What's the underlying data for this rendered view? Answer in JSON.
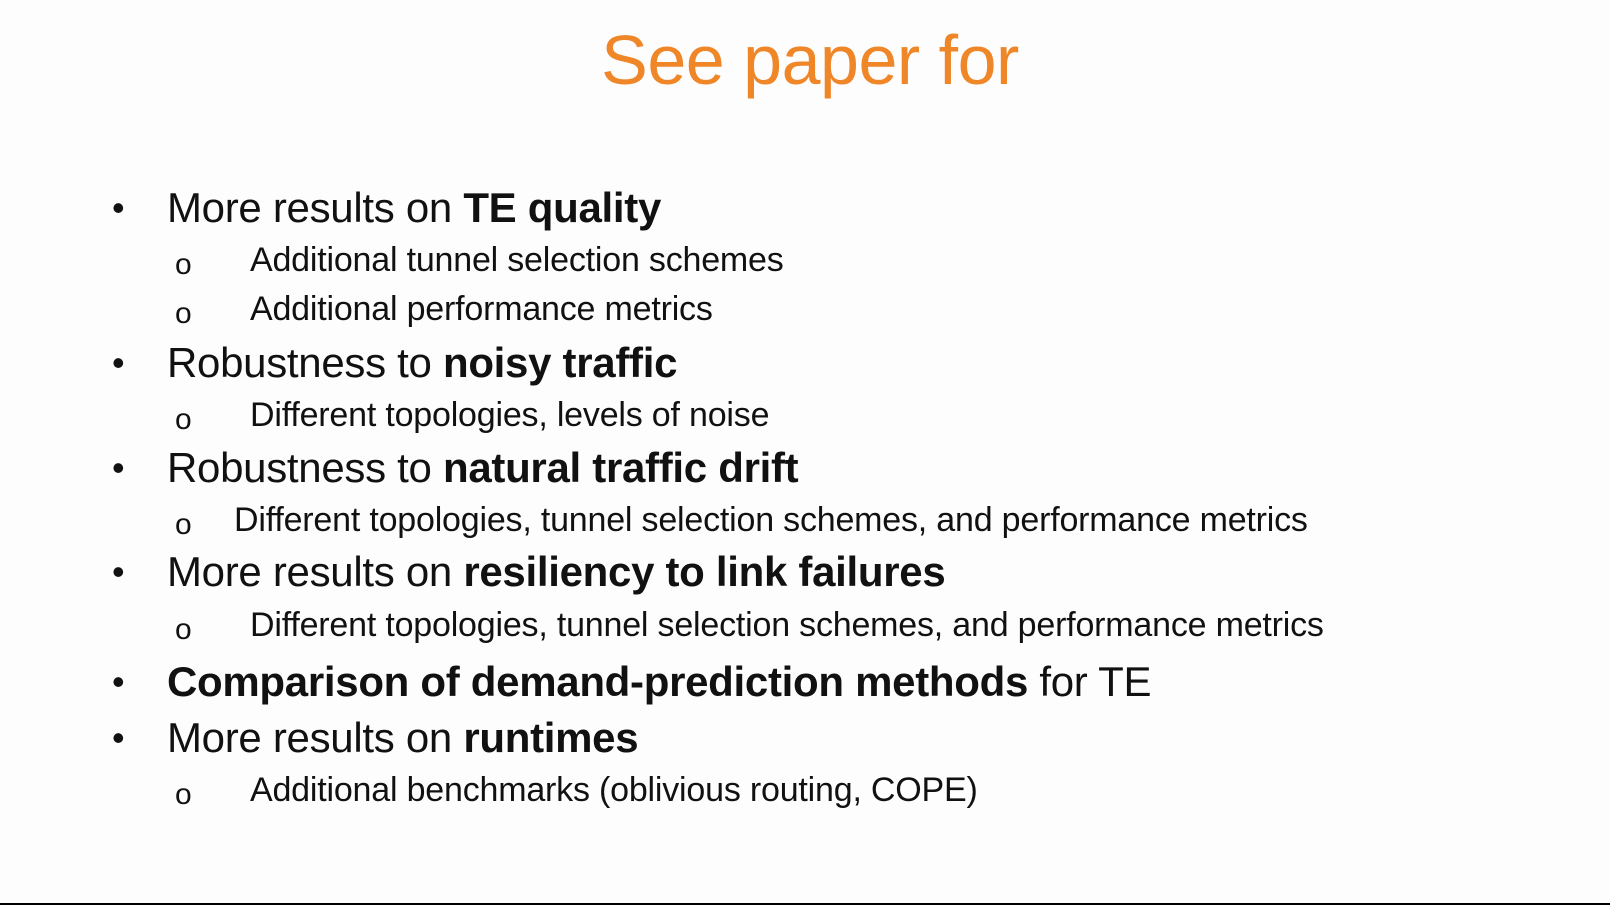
{
  "slide": {
    "title": "See paper for",
    "bullet_glyph": "•",
    "sub_bullet_glyph": "o",
    "items": [
      {
        "normal": "More results on ",
        "bold": "TE quality"
      },
      {
        "normal": "Additional tunnel selection schemes"
      },
      {
        "normal": "Additional performance metrics"
      },
      {
        "normal": "Robustness to ",
        "bold": "noisy traffic"
      },
      {
        "normal": "Different topologies, levels of noise"
      },
      {
        "normal": "Robustness to ",
        "bold": "natural traffic drift"
      },
      {
        "normal": "Different topologies, tunnel selection schemes, and performance metrics"
      },
      {
        "normal": "More results on ",
        "bold": "resiliency to link failures"
      },
      {
        "normal": "Different topologies, tunnel selection schemes, and performance metrics"
      },
      {
        "bold": "Comparison of demand-prediction methods",
        "normal": " for TE"
      },
      {
        "normal": "More results on ",
        "bold": "runtimes"
      },
      {
        "normal": "Additional benchmarks (oblivious routing, COPE)"
      }
    ]
  }
}
